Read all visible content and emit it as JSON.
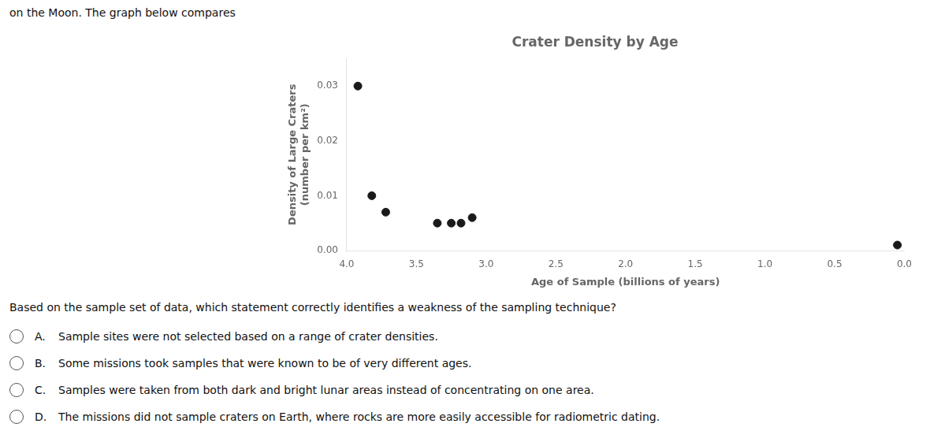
{
  "chart_data": {
    "type": "scatter",
    "title": "Crater Density by Age",
    "xlabel": "Age of Sample (billions of years)",
    "ylabel": "Density of Large Craters\n(number per km²)",
    "x": [
      3.92,
      3.82,
      3.72,
      3.35,
      3.25,
      3.18,
      3.1,
      0.05
    ],
    "values": [
      0.03,
      0.01,
      0.007,
      0.005,
      0.005,
      0.005,
      0.006,
      0.001
    ],
    "color": "#1a1a1a",
    "xlim": [
      4.0,
      0.0
    ],
    "ylim": [
      0.0,
      0.035
    ],
    "xticks": [
      {
        "value": 4.0,
        "label": "4.0"
      },
      3.5,
      {
        "value": 3.0,
        "label": "3.0"
      },
      2.5,
      {
        "value": 2.0,
        "label": "2.0"
      },
      1.5,
      {
        "value": 1.0,
        "label": "1.0"
      },
      0.5,
      {
        "value": 0.0,
        "label": "0.0"
      }
    ],
    "yticks": [
      {
        "value": 0.0,
        "label": "0.00"
      },
      0.01,
      0.02,
      0.03
    ],
    "grid": false,
    "header_text": "on the Moon. The graph below compares",
    "question_text": "Based on the sample set of data, which statement correctly identifies a weakness of the sampling technique?",
    "options": [
      {
        "letter": "A.",
        "text": "Sample sites were not selected based on a range of crater densities."
      },
      {
        "letter": "B.",
        "text": "Some missions took samples that were known to be of very different ages."
      },
      {
        "letter": "C.",
        "text": "Samples were taken from both dark and bright lunar areas instead of concentrating on one area."
      },
      {
        "letter": "D.",
        "text": "The missions did not sample craters on Earth, where rocks are more easily accessible for radiometric dating."
      }
    ]
  }
}
